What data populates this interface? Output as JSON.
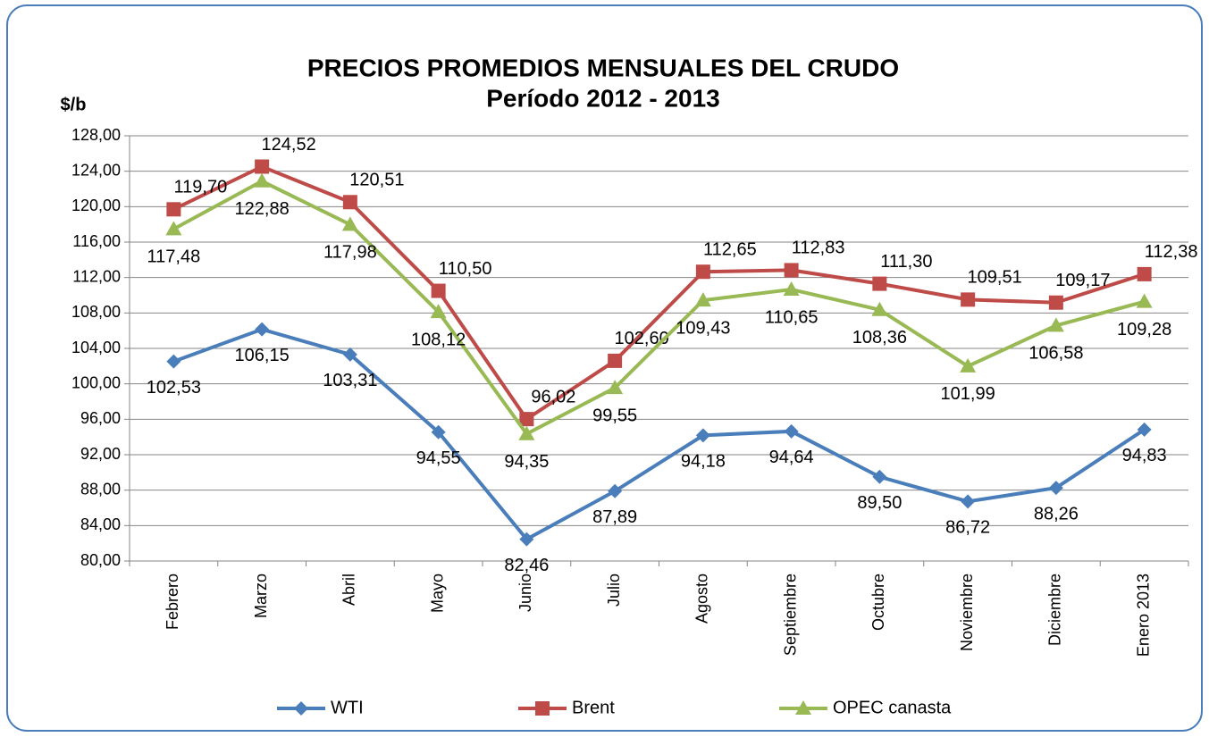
{
  "chart_data": {
    "type": "line",
    "title": "PRECIOS PROMEDIOS MENSUALES DEL CRUDO",
    "subtitle": "Período 2012 - 2013",
    "y_label": "$/b",
    "categories": [
      "Febrero",
      "Marzo",
      "Abril",
      "Mayo",
      "Junio",
      "Julio",
      "Agosto",
      "Septiembre",
      "Octubre",
      "Noviembre",
      "Diciembre",
      "Enero 2013"
    ],
    "ylim": [
      80,
      128
    ],
    "yticks": [
      {
        "value": 80,
        "label": "80,00"
      },
      {
        "value": 84,
        "label": "84,00"
      },
      {
        "value": 88,
        "label": "88,00"
      },
      {
        "value": 92,
        "label": "92,00"
      },
      {
        "value": 96,
        "label": "96,00"
      },
      {
        "value": 100,
        "label": "100,00"
      },
      {
        "value": 104,
        "label": "104,00"
      },
      {
        "value": 108,
        "label": "108,00"
      },
      {
        "value": 112,
        "label": "112,00"
      },
      {
        "value": 116,
        "label": "116,00"
      },
      {
        "value": 120,
        "label": "120,00"
      },
      {
        "value": 124,
        "label": "124,00"
      },
      {
        "value": 128,
        "label": "128,00"
      }
    ],
    "grid": true,
    "legend": "bottom",
    "series": [
      {
        "name": "WTI",
        "color": "#4a7ebb",
        "marker": "diamond",
        "values": [
          102.53,
          106.15,
          103.31,
          94.55,
          82.46,
          87.89,
          94.18,
          94.64,
          89.5,
          86.72,
          88.26,
          94.83
        ],
        "value_labels": [
          "102,53",
          "106,15",
          "103,31",
          "94,55",
          "82,46",
          "87,89",
          "94,18",
          "94,64",
          "89,50",
          "86,72",
          "88,26",
          "94,83"
        ]
      },
      {
        "name": "Brent",
        "color": "#be4b48",
        "marker": "square",
        "values": [
          119.7,
          124.52,
          120.51,
          110.5,
          96.02,
          102.6,
          112.65,
          112.83,
          111.3,
          109.51,
          109.17,
          112.38
        ],
        "value_labels": [
          "119,70",
          "124,52",
          "120,51",
          "110,50",
          "96,02",
          "102,60",
          "112,65",
          "112,83",
          "111,30",
          "109,51",
          "109,17",
          "112,38"
        ]
      },
      {
        "name": "OPEC canasta",
        "color": "#98b954",
        "marker": "triangle",
        "values": [
          117.48,
          122.88,
          117.98,
          108.12,
          94.35,
          99.55,
          109.43,
          110.65,
          108.36,
          101.99,
          106.58,
          109.28
        ],
        "value_labels": [
          "117,48",
          "122,88",
          "117,98",
          "108,12",
          "94,35",
          "99,55",
          "109,43",
          "110,65",
          "108,36",
          "101,99",
          "106,58",
          "109,28"
        ]
      }
    ]
  }
}
